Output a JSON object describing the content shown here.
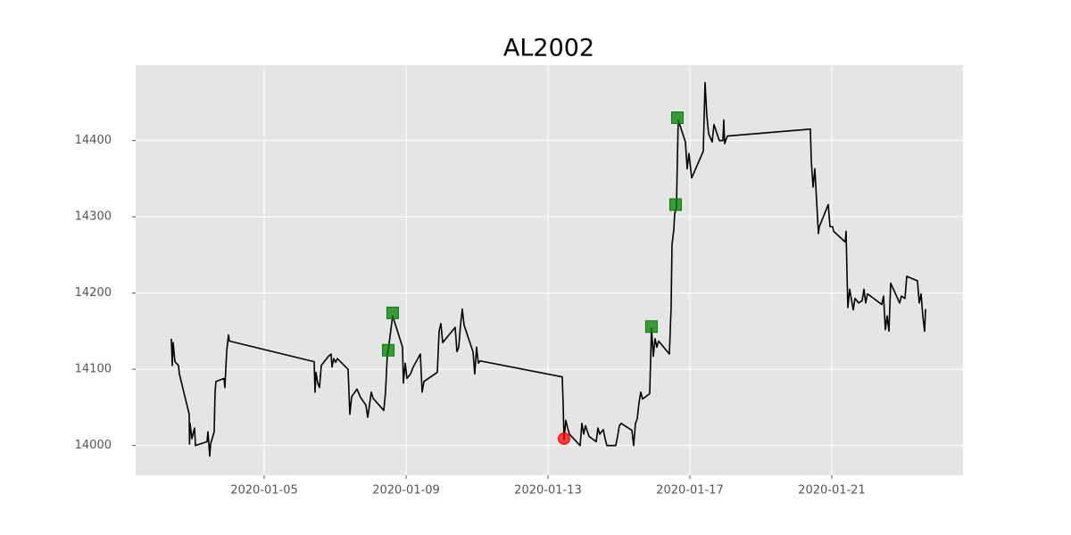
{
  "chart_data": {
    "type": "line",
    "title": "AL2002",
    "color": "#000000",
    "grid": true,
    "x": [
      "2020-01-02T09:13",
      "2020-01-02T09:50",
      "2020-01-02T10:25",
      "2020-01-02T11:38",
      "2020-01-02T14:02",
      "2020-01-02T14:38",
      "2020-01-02T21:17",
      "2020-01-02T21:30",
      "2020-01-02T21:53",
      "2020-01-02T23:06",
      "2020-01-03T00:55",
      "2020-01-03T01:31",
      "2020-01-03T09:22",
      "2020-01-03T09:58",
      "2020-01-03T11:10",
      "2020-01-03T11:47",
      "2020-01-03T14:11",
      "2020-01-03T14:47",
      "2020-01-03T15:24",
      "2020-01-03T20:50",
      "2020-01-03T21:26",
      "2020-01-03T22:38",
      "2020-01-03T23:51",
      "2020-01-04T00:28",
      "2020-01-06T09:49",
      "2020-01-06T10:25",
      "2020-01-06T11:02",
      "2020-01-06T12:14",
      "2020-01-06T13:26",
      "2020-01-06T14:39",
      "2020-01-06T19:29",
      "2020-01-06T21:17",
      "2020-01-06T21:53",
      "2020-01-06T23:06",
      "2020-01-07T00:19",
      "2020-01-07T01:31",
      "2020-01-07T08:46",
      "2020-01-07T09:58",
      "2020-01-07T11:11",
      "2020-01-07T14:48",
      "2020-01-07T17:13",
      "2020-01-07T20:50",
      "2020-01-07T22:03",
      "2020-01-07T23:15",
      "2020-01-08T00:28",
      "2020-01-08T01:40",
      "2020-01-08T08:55",
      "2020-01-08T10:07",
      "2020-01-08T11:20",
      "2020-01-08T11:56",
      "2020-01-08T14:57",
      "2020-01-08T21:36",
      "2020-01-08T22:12",
      "2020-01-08T23:25",
      "2020-01-09T00:37",
      "2020-01-09T03:02",
      "2020-01-09T04:50",
      "2020-01-09T09:40",
      "2020-01-09T10:53",
      "2020-01-09T12:05",
      "2020-01-09T15:06",
      "2020-01-09T21:08",
      "2020-01-09T22:21",
      "2020-01-09T23:34",
      "2020-01-10T00:46",
      "2020-01-10T09:13",
      "2020-01-10T10:25",
      "2020-01-10T11:38",
      "2020-01-10T12:50",
      "2020-01-10T14:02",
      "2020-01-10T15:15",
      "2020-01-10T21:17",
      "2020-01-10T22:29",
      "2020-01-10T23:42",
      "2020-01-11T00:54",
      "2020-01-11T02:07",
      "2020-01-13T09:40",
      "2020-01-13T10:17",
      "2020-01-13T10:53",
      "2020-01-13T12:05",
      "2020-01-13T13:18",
      "2020-01-13T14:30",
      "2020-01-13T21:45",
      "2020-01-13T22:57",
      "2020-01-14T00:10",
      "2020-01-14T01:22",
      "2020-01-14T03:47",
      "2020-01-14T08:37",
      "2020-01-14T09:49",
      "2020-01-14T11:02",
      "2020-01-14T13:26",
      "2020-01-14T14:39",
      "2020-01-14T15:52",
      "2020-01-14T21:54",
      "2020-01-14T23:06",
      "2020-01-15T00:19",
      "2020-01-15T01:31",
      "2020-01-15T08:46",
      "2020-01-15T09:58",
      "2020-01-15T11:11",
      "2020-01-15T12:23",
      "2020-01-15T13:35",
      "2020-01-15T14:48",
      "2020-01-15T16:00",
      "2020-01-15T20:50",
      "2020-01-15T22:02",
      "2020-01-15T23:15",
      "2020-01-16T00:27",
      "2020-01-16T01:40",
      "2020-01-16T02:52",
      "2020-01-16T10:07",
      "2020-01-16T11:19",
      "2020-01-16T11:55",
      "2020-01-16T13:08",
      "2020-01-16T13:44",
      "2020-01-16T14:56",
      "2020-01-16T15:32",
      "2020-01-16T16:09",
      "2020-01-16T20:59",
      "2020-01-16T22:11",
      "2020-01-16T23:23",
      "2020-01-17T01:13",
      "2020-01-17T09:04",
      "2020-01-17T10:16",
      "2020-01-17T11:28",
      "2020-01-17T12:41",
      "2020-01-17T15:05",
      "2020-01-17T16:18",
      "2020-01-17T19:55",
      "2020-01-17T22:20",
      "2020-01-17T22:56",
      "2020-01-17T23:33",
      "2020-01-18T01:22",
      "2020-01-20T09:32",
      "2020-01-20T10:08",
      "2020-01-20T11:20",
      "2020-01-20T12:33",
      "2020-01-20T14:58",
      "2020-01-20T15:34",
      "2020-01-20T21:37",
      "2020-01-20T22:49",
      "2020-01-21T00:37",
      "2020-01-21T01:14",
      "2020-01-21T09:05",
      "2020-01-21T09:41",
      "2020-01-21T10:17",
      "2020-01-21T10:53",
      "2020-01-21T12:06",
      "2020-01-21T14:31",
      "2020-01-21T15:43",
      "2020-01-21T18:08",
      "2020-01-21T20:33",
      "2020-01-21T21:46",
      "2020-01-21T22:58",
      "2020-01-22T00:10",
      "2020-01-22T09:50",
      "2020-01-22T11:02",
      "2020-01-22T12:15",
      "2020-01-22T13:27",
      "2020-01-22T14:40",
      "2020-01-22T15:52",
      "2020-01-22T21:55",
      "2020-01-22T23:07",
      "2020-01-23T01:32",
      "2020-01-23T02:44",
      "2020-01-23T09:59",
      "2020-01-23T11:11",
      "2020-01-23T12:24",
      "2020-01-23T13:36",
      "2020-01-23T14:49",
      "2020-01-23T15:25"
    ],
    "values": [
      14140,
      14105,
      14135,
      14110,
      14105,
      14094,
      14041,
      14002,
      14029,
      14009,
      14023,
      14000,
      14005,
      14018,
      13986,
      14002,
      14018,
      14070,
      14084,
      14088,
      14076,
      14123,
      14145,
      14137,
      14110,
      14070,
      14096,
      14082,
      14076,
      14105,
      14117,
      14120,
      14103,
      14114,
      14109,
      14114,
      14100,
      14041,
      14064,
      14074,
      14063,
      14053,
      14037,
      14053,
      14070,
      14062,
      14046,
      14070,
      14120,
      14125,
      14170,
      14129,
      14082,
      14108,
      14088,
      14094,
      14103,
      14120,
      14070,
      14084,
      14088,
      14096,
      14150,
      14160,
      14135,
      14155,
      14123,
      14129,
      14158,
      14179,
      14158,
      14123,
      14094,
      14129,
      14108,
      14111,
      14090,
      14053,
      14008,
      14033,
      14023,
      14015,
      14000,
      14029,
      14015,
      14026,
      14012,
      14005,
      14023,
      14015,
      14021,
      14009,
      14000,
      14000,
      14012,
      14026,
      14029,
      14020,
      14000,
      14029,
      14035,
      14056,
      14070,
      14061,
      14068,
      14154,
      14117,
      14140,
      14129,
      14137,
      14120,
      14181,
      14263,
      14283,
      14304,
      14312,
      14374,
      14427,
      14398,
      14363,
      14383,
      14351,
      14386,
      14476,
      14433,
      14409,
      14398,
      14421,
      14400,
      14400,
      14427,
      14396,
      14406,
      14415,
      14374,
      14339,
      14363,
      14278,
      14287,
      14316,
      14287,
      14287,
      14281,
      14267,
      14281,
      14228,
      14181,
      14205,
      14178,
      14193,
      14187,
      14190,
      14205,
      14187,
      14199,
      14185,
      14196,
      14152,
      14170,
      14150,
      14213,
      14187,
      14196,
      14193,
      14222,
      14216,
      14187,
      14199,
      14170,
      14150,
      14179
    ],
    "markers": [
      {
        "color": "#008000",
        "marker": "square",
        "x": [
          "2020-01-08T11:56",
          "2020-01-08T14:57",
          "2020-01-15T22:02",
          "2020-01-16T14:20",
          "2020-01-16T15:32"
        ],
        "values": [
          14125,
          14174,
          14156,
          14316,
          14430
        ]
      },
      {
        "color": "#ff0000",
        "marker": "circle",
        "x": [
          "2020-01-13T10:53"
        ],
        "values": [
          14009
        ]
      }
    ],
    "xlim": [
      "2020-01-01T09:04",
      "2020-01-24T16:47"
    ],
    "xticks": [
      "2020-01-05",
      "2020-01-09",
      "2020-01-13",
      "2020-01-17",
      "2020-01-21"
    ],
    "ylim": [
      13961,
      14499
    ],
    "yticks": [
      14000,
      14100,
      14200,
      14300,
      14400
    ]
  }
}
